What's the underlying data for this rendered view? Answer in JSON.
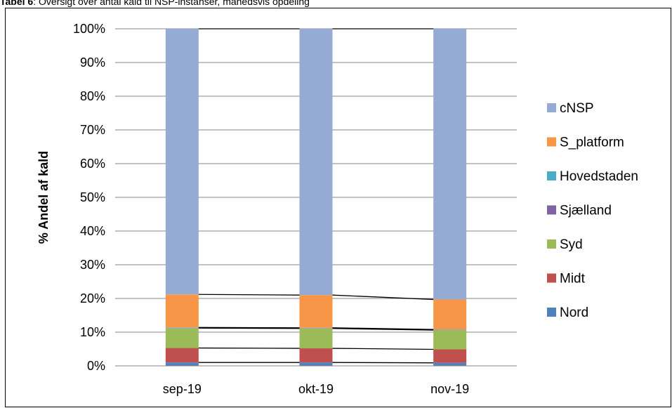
{
  "caption": {
    "label": "Tabel 6",
    "text": ": Oversigt over antal kald til NSP-instanser, månedsvis opdeling"
  },
  "chart_data": {
    "type": "bar",
    "stacked": "percent",
    "categories": [
      "sep-19",
      "okt-19",
      "nov-19"
    ],
    "ylabel": "% Andel af kald",
    "xlabel": "",
    "ylim": [
      0,
      100
    ],
    "yticks": [
      "0%",
      "10%",
      "20%",
      "30%",
      "40%",
      "50%",
      "60%",
      "70%",
      "80%",
      "90%",
      "100%"
    ],
    "grid": true,
    "legend": "right",
    "series_lines": true,
    "series": [
      {
        "name": "Nord",
        "color": "#4F81BD",
        "values": [
          1.0,
          1.0,
          0.9
        ]
      },
      {
        "name": "Midt",
        "color": "#C0504D",
        "values": [
          4.3,
          4.2,
          4.0
        ]
      },
      {
        "name": "Syd",
        "color": "#9BBB59",
        "values": [
          5.9,
          5.9,
          5.7
        ]
      },
      {
        "name": "Sjælland",
        "color": "#8064A2",
        "values": [
          0.1,
          0.1,
          0.1
        ]
      },
      {
        "name": "Hovedstaden",
        "color": "#4BACC6",
        "values": [
          0.1,
          0.1,
          0.1
        ]
      },
      {
        "name": "S_platform",
        "color": "#F79646",
        "values": [
          9.8,
          9.7,
          8.9
        ]
      },
      {
        "name": "cNSP",
        "color": "#95ABD3",
        "values": [
          78.8,
          79.0,
          80.3
        ]
      }
    ]
  }
}
